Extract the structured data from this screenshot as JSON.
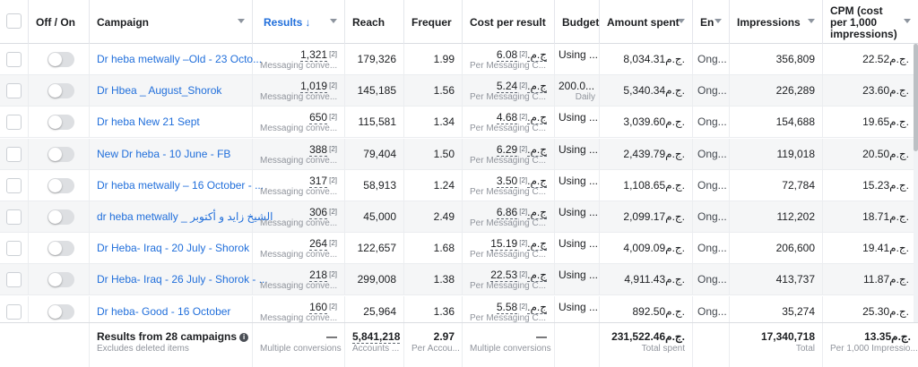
{
  "headers": {
    "off_on": "Off / On",
    "campaign": "Campaign",
    "results": "Results",
    "results_arrow": "↓",
    "reach": "Reach",
    "frequency": "Frequer",
    "cost_per_result": "Cost per result",
    "budget": "Budget",
    "amount_spent": "Amount spent",
    "ends": "En",
    "impressions": "Impressions",
    "cpm": "CPM (cost per 1,000 impressions)"
  },
  "rows": [
    {
      "campaign": "Dr heba metwally –Old - 23 Octo...",
      "results": "1,321",
      "results_sub": "Messaging conve...",
      "reach": "179,326",
      "frequency": "1.99",
      "cost": "6.08ج.م.",
      "cost_sub": "Per Messaging C...",
      "budget": "Using ...",
      "budget_sub": "",
      "spent": "8,034.31ج.م.",
      "ends": "Ong...",
      "impressions": "356,809",
      "cpm": "22.52ج.م."
    },
    {
      "campaign": "Dr Hbea _ August_Shorok",
      "results": "1,019",
      "results_sub": "Messaging conve...",
      "reach": "145,185",
      "frequency": "1.56",
      "cost": "5.24ج.م.",
      "cost_sub": "Per Messaging C...",
      "budget": "200.0...",
      "budget_sub": "Daily",
      "spent": "5,340.34ج.م.",
      "ends": "Ong...",
      "impressions": "226,289",
      "cpm": "23.60ج.م."
    },
    {
      "campaign": "Dr heba New 21 Sept",
      "results": "650",
      "results_sub": "Messaging conve...",
      "reach": "115,581",
      "frequency": "1.34",
      "cost": "4.68ج.م.",
      "cost_sub": "Per Messaging C...",
      "budget": "Using ...",
      "budget_sub": "",
      "spent": "3,039.60ج.م.",
      "ends": "Ong...",
      "impressions": "154,688",
      "cpm": "19.65ج.م."
    },
    {
      "campaign": "New Dr heba - 10 June - FB",
      "results": "388",
      "results_sub": "Messaging conve...",
      "reach": "79,404",
      "frequency": "1.50",
      "cost": "6.29ج.م.",
      "cost_sub": "Per Messaging C...",
      "budget": "Using ...",
      "budget_sub": "",
      "spent": "2,439.79ج.م.",
      "ends": "Ong...",
      "impressions": "119,018",
      "cpm": "20.50ج.م."
    },
    {
      "campaign": "Dr heba metwally – 16 October - ...",
      "results": "317",
      "results_sub": "Messaging conve...",
      "reach": "58,913",
      "frequency": "1.24",
      "cost": "3.50ج.م.",
      "cost_sub": "Per Messaging C...",
      "budget": "Using ...",
      "budget_sub": "",
      "spent": "1,108.65ج.م.",
      "ends": "Ong...",
      "impressions": "72,784",
      "cpm": "15.23ج.م."
    },
    {
      "campaign": "dr heba metwally _ الشيخ زايد و أكتوبر",
      "results": "306",
      "results_sub": "Messaging conve...",
      "reach": "45,000",
      "frequency": "2.49",
      "cost": "6.86ج.م.",
      "cost_sub": "Per Messaging C...",
      "budget": "Using ...",
      "budget_sub": "",
      "spent": "2,099.17ج.م.",
      "ends": "Ong...",
      "impressions": "112,202",
      "cpm": "18.71ج.م."
    },
    {
      "campaign": "Dr Heba- Iraq - 20 July - Shorok",
      "results": "264",
      "results_sub": "Messaging conve...",
      "reach": "122,657",
      "frequency": "1.68",
      "cost": "15.19ج.م.",
      "cost_sub": "Per Messaging C...",
      "budget": "Using ...",
      "budget_sub": "",
      "spent": "4,009.09ج.م.",
      "ends": "Ong...",
      "impressions": "206,600",
      "cpm": "19.41ج.م."
    },
    {
      "campaign": "Dr Heba- Iraq - 26 July - Shorok - ...",
      "results": "218",
      "results_sub": "Messaging conve...",
      "reach": "299,008",
      "frequency": "1.38",
      "cost": "22.53ج.م.",
      "cost_sub": "Per Messaging C...",
      "budget": "Using ...",
      "budget_sub": "",
      "spent": "4,911.43ج.م.",
      "ends": "Ong...",
      "impressions": "413,737",
      "cpm": "11.87ج.م."
    },
    {
      "campaign": "Dr heba- Good - 16 October",
      "results": "160",
      "results_sub": "Messaging conve...",
      "reach": "25,964",
      "frequency": "1.36",
      "cost": "5.58ج.م.",
      "cost_sub": "Per Messaging C...",
      "budget": "Using ...",
      "budget_sub": "",
      "spent": "892.50ج.م.",
      "ends": "Ong...",
      "impressions": "35,274",
      "cpm": "25.30ج.م."
    }
  ],
  "sup": "[2]",
  "footer": {
    "title": "Results from 28 campaigns",
    "info_icon": "i",
    "subtitle": "Excludes deleted items",
    "results": "—",
    "results_sub": "Multiple conversions",
    "reach": "5,841,218",
    "reach_sub": "Accounts ...",
    "frequency": "2.97",
    "frequency_sub": "Per Accou...",
    "cost": "—",
    "cost_sub": "Multiple conversions",
    "spent": "231,522.46ج.م.",
    "spent_sub": "Total spent",
    "impressions": "17,340,718",
    "impressions_sub": "Total",
    "cpm": "13.35ج.م.",
    "cpm_sub": "Per 1,000 Impressio..."
  },
  "colors": {
    "link": "#216fdb",
    "header_sorted": "#216fdb",
    "row_alt": "#f5f6f7"
  }
}
